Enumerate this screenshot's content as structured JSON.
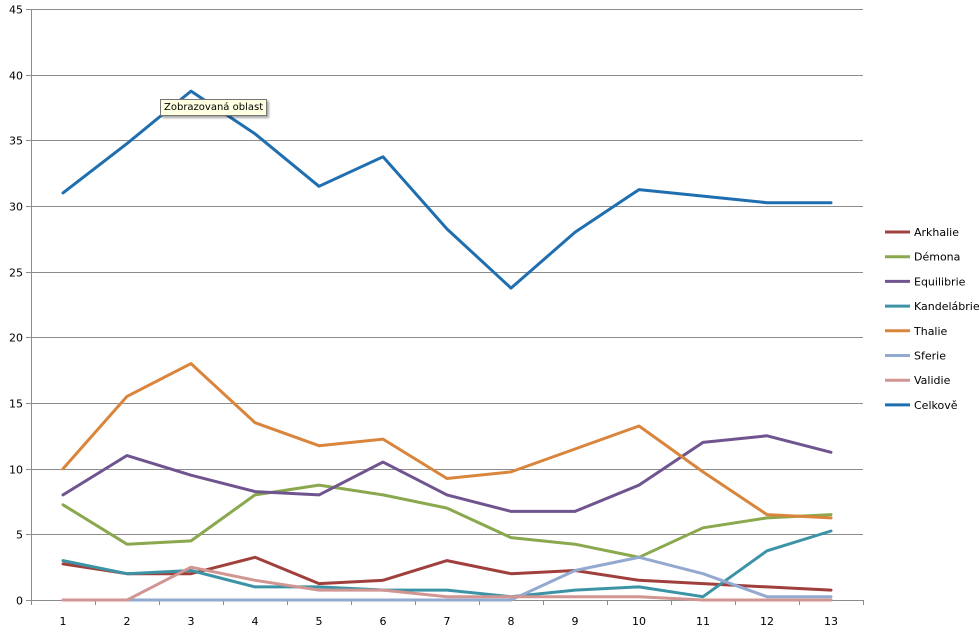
{
  "tooltip": "Zobrazovaná oblast",
  "chart_data": {
    "type": "line",
    "x": [
      1,
      2,
      3,
      4,
      5,
      6,
      7,
      8,
      9,
      10,
      11,
      12,
      13
    ],
    "ylim": [
      0,
      45
    ],
    "yticks": [
      0,
      5,
      10,
      15,
      20,
      25,
      30,
      35,
      40,
      45
    ],
    "grid": "horizontal",
    "legend": "right",
    "series": [
      {
        "name": "Arkhalie",
        "color": "#a0403c",
        "values": [
          2.75,
          2.0,
          2.0,
          3.25,
          1.25,
          1.5,
          3.0,
          2.0,
          2.25,
          1.5,
          1.25,
          1.0,
          0.75
        ]
      },
      {
        "name": "Démona",
        "color": "#8aa84e",
        "values": [
          7.25,
          4.25,
          4.5,
          8.0,
          8.75,
          8.0,
          7.0,
          4.75,
          4.25,
          3.25,
          5.5,
          6.25,
          6.5
        ]
      },
      {
        "name": "Equilibrie",
        "color": "#6f548f",
        "values": [
          8.0,
          11.0,
          9.5,
          8.25,
          8.0,
          10.5,
          8.0,
          6.75,
          6.75,
          8.75,
          12.0,
          12.5,
          11.25
        ]
      },
      {
        "name": "Kandelábrie",
        "color": "#3d93a6",
        "values": [
          3.0,
          2.0,
          2.25,
          1.0,
          1.0,
          0.75,
          0.75,
          0.25,
          0.75,
          1.0,
          0.25,
          3.75,
          5.25
        ]
      },
      {
        "name": "Thalie",
        "color": "#d9853b",
        "values": [
          10.0,
          15.5,
          18.0,
          13.5,
          11.75,
          12.25,
          9.25,
          9.75,
          11.5,
          13.25,
          9.75,
          6.5,
          6.25
        ]
      },
      {
        "name": "Sferie",
        "color": "#93a9cf",
        "values": [
          0.0,
          0.0,
          0.0,
          0.0,
          0.0,
          0.0,
          0.0,
          0.0,
          2.25,
          3.25,
          2.0,
          0.25,
          0.25
        ]
      },
      {
        "name": "Validie",
        "color": "#d19592",
        "values": [
          0.0,
          0.0,
          2.5,
          1.5,
          0.75,
          0.75,
          0.25,
          0.25,
          0.25,
          0.25,
          0.0,
          0.0,
          0.0
        ]
      },
      {
        "name": "Celkově",
        "color": "#1f6fb0",
        "values": [
          31.0,
          34.75,
          38.75,
          35.5,
          31.5,
          33.75,
          28.25,
          23.75,
          28.0,
          31.25,
          30.75,
          30.25,
          30.25
        ]
      }
    ]
  }
}
